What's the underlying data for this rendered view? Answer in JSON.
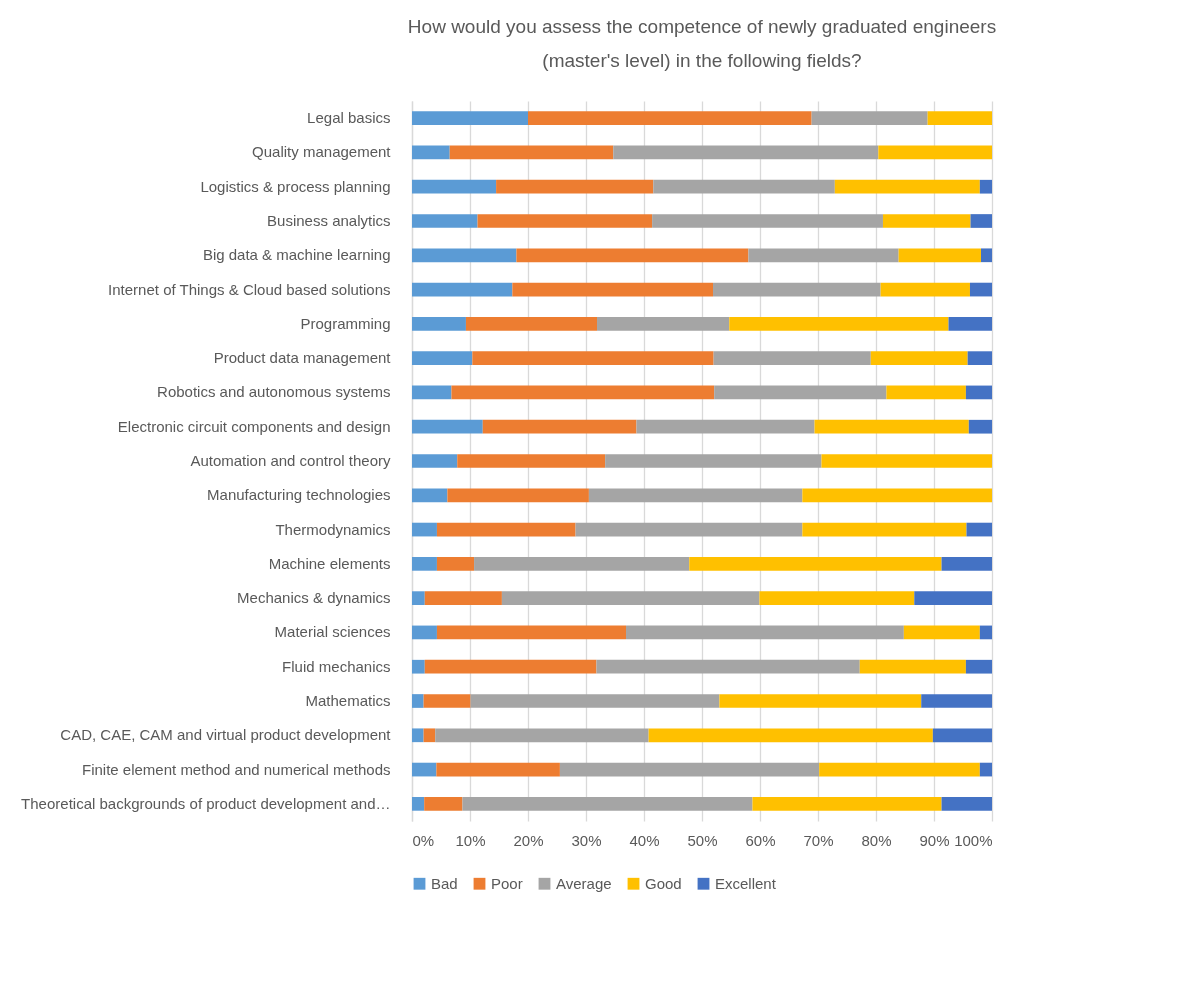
{
  "chart_data": {
    "type": "bar",
    "orientation": "horizontal",
    "stacked": true,
    "title": [
      "How would you assess the competence of newly graduated engineers",
      "(master's level) in the following fields?"
    ],
    "categories": [
      "Legal basics",
      "Quality management",
      "Logistics & process planning",
      "Business analytics",
      "Big data & machine learning",
      "Internet of Things & Cloud based solutions",
      "Programming",
      "Product data management",
      "Robotics and autonomous systems",
      "Electronic circuit components and design",
      "Automation and control theory",
      "Manufacturing technologies",
      "Thermodynamics",
      "Machine elements",
      "Mechanics & dynamics",
      "Material sciences",
      "Fluid mechanics",
      "Mathematics",
      "CAD, CAE, CAM and virtual product development",
      "Finite element method and numerical methods",
      "Theoretical backgrounds of product development and…"
    ],
    "series": [
      {
        "name": "Bad",
        "color": "#5b9bd5",
        "values": [
          20,
          6.5,
          14.5,
          11.3,
          18,
          17.3,
          9.3,
          10.4,
          6.8,
          12.2,
          7.8,
          6.1,
          4.3,
          4.3,
          2.2,
          4.3,
          2.2,
          2,
          2,
          4.2,
          2.1
        ]
      },
      {
        "name": "Poor",
        "color": "#ed7d31",
        "values": [
          48.9,
          28.2,
          27.1,
          30.1,
          40,
          34.6,
          22.6,
          41.6,
          45.3,
          26.5,
          25.5,
          24.4,
          23.9,
          6.4,
          13.3,
          32.6,
          29.6,
          8.1,
          2,
          21.3,
          6.6
        ]
      },
      {
        "name": "Average",
        "color": "#a5a5a5",
        "values": [
          20,
          45.7,
          31.3,
          39.8,
          25.9,
          28.9,
          22.8,
          27.1,
          29.7,
          30.7,
          37.3,
          36.8,
          39.1,
          37.1,
          44.4,
          47.9,
          45.4,
          42.9,
          36.8,
          44.7,
          50
        ]
      },
      {
        "name": "Good",
        "color": "#ffc000",
        "values": [
          11.1,
          19.6,
          25,
          15.1,
          14.2,
          15.4,
          37.8,
          16.7,
          13.7,
          26.6,
          29.4,
          32.7,
          28.3,
          43.5,
          26.7,
          13.1,
          18.3,
          34.8,
          49,
          27.7,
          32.6
        ]
      },
      {
        "name": "Excellent",
        "color": "#4472c4",
        "values": [
          0,
          0,
          2.1,
          3.7,
          1.9,
          3.8,
          7.5,
          4.2,
          4.5,
          4,
          0,
          0,
          4.4,
          8.7,
          13.4,
          2.1,
          4.5,
          12.2,
          10.2,
          2.1,
          8.7
        ]
      }
    ],
    "xlim": [
      0,
      100
    ],
    "xticks": [
      {
        "value": 0,
        "label": "0%"
      },
      {
        "value": 10,
        "label": "10%"
      },
      {
        "value": 20,
        "label": "20%"
      },
      {
        "value": 30,
        "label": "30%"
      },
      {
        "value": 40,
        "label": "40%"
      },
      {
        "value": 50,
        "label": "50%"
      },
      {
        "value": 60,
        "label": "60%"
      },
      {
        "value": 70,
        "label": "70%"
      },
      {
        "value": 80,
        "label": "80%"
      },
      {
        "value": 90,
        "label": "90%"
      },
      {
        "value": 100,
        "label": "100%"
      }
    ],
    "grid": "x",
    "legend": "bottom"
  }
}
